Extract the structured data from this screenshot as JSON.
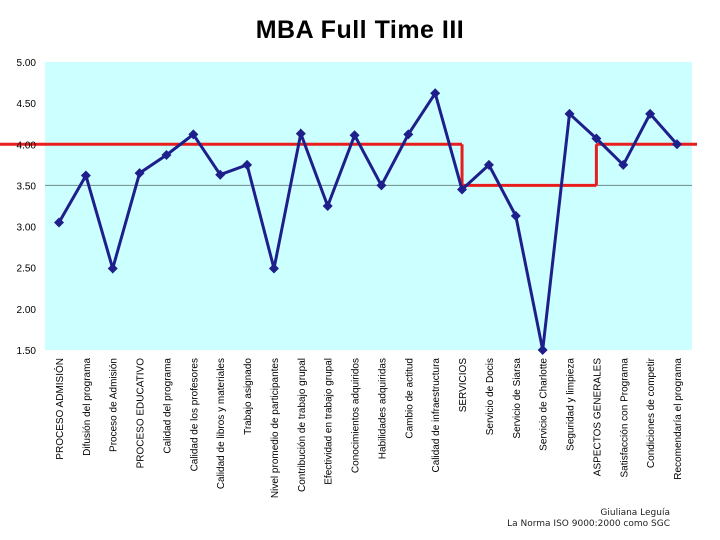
{
  "chart_data": {
    "type": "line",
    "title": "MBA Full Time III",
    "categories": [
      "PROCESO ADMISIÓN",
      "Difusión del programa",
      "Proceso de Admisión",
      "PROCESO EDUCATIVO",
      "Calidad del programa",
      "Calidad de los profesores",
      "Calidad de libros y materiales",
      "Trabajo asignado",
      "Nivel promedio de participantes",
      "Contribución de trabajo grupal",
      "Efectividad en trabajo grupal",
      "Conocimientos adquiridos",
      "Habilidades adquiridas",
      "Cambio de actitud",
      "Calidad de infraestructura",
      "SERVICIOS",
      "Servicio de Docis",
      "Servicio de Siarsa",
      "Servicio de Charlotte",
      "Seguridad y limpieza",
      "ASPECTOS GENERALES",
      "Satisfacción con Programa",
      "Condiciones de competir",
      "Recomendaría el programa"
    ],
    "series": [
      {
        "values": [
          3.05,
          3.62,
          2.49,
          3.65,
          3.87,
          4.12,
          3.63,
          3.75,
          2.49,
          4.13,
          3.25,
          4.11,
          3.5,
          4.12,
          4.62,
          3.45,
          3.75,
          3.13,
          1.5,
          4.37,
          4.07,
          3.75,
          4.37,
          4.0
        ]
      }
    ],
    "reference_line": {
      "value": 3.5
    },
    "targets": [
      {
        "from_index": 0,
        "to_index": 15,
        "value": 4.0
      },
      {
        "from_index": 15,
        "to_index": 20,
        "value": 3.5
      },
      {
        "from_index": 20,
        "to_index": 23,
        "value": 4.0
      }
    ],
    "ylim": [
      1.5,
      5.0
    ],
    "yticks": [
      "5.00",
      "4.50",
      "4.00",
      "3.50",
      "3.00",
      "2.50",
      "2.00",
      "1.50"
    ],
    "colors": {
      "plot_bg": "#ccffff",
      "line": "#1f1f8c",
      "target": "#e81e1e",
      "reference": "#6e8c8c"
    },
    "grid": false,
    "legend": "none"
  },
  "footer": {
    "author": "Giuliana Leguía",
    "subtitle": "La Norma ISO 9000:2000 como SGC"
  }
}
